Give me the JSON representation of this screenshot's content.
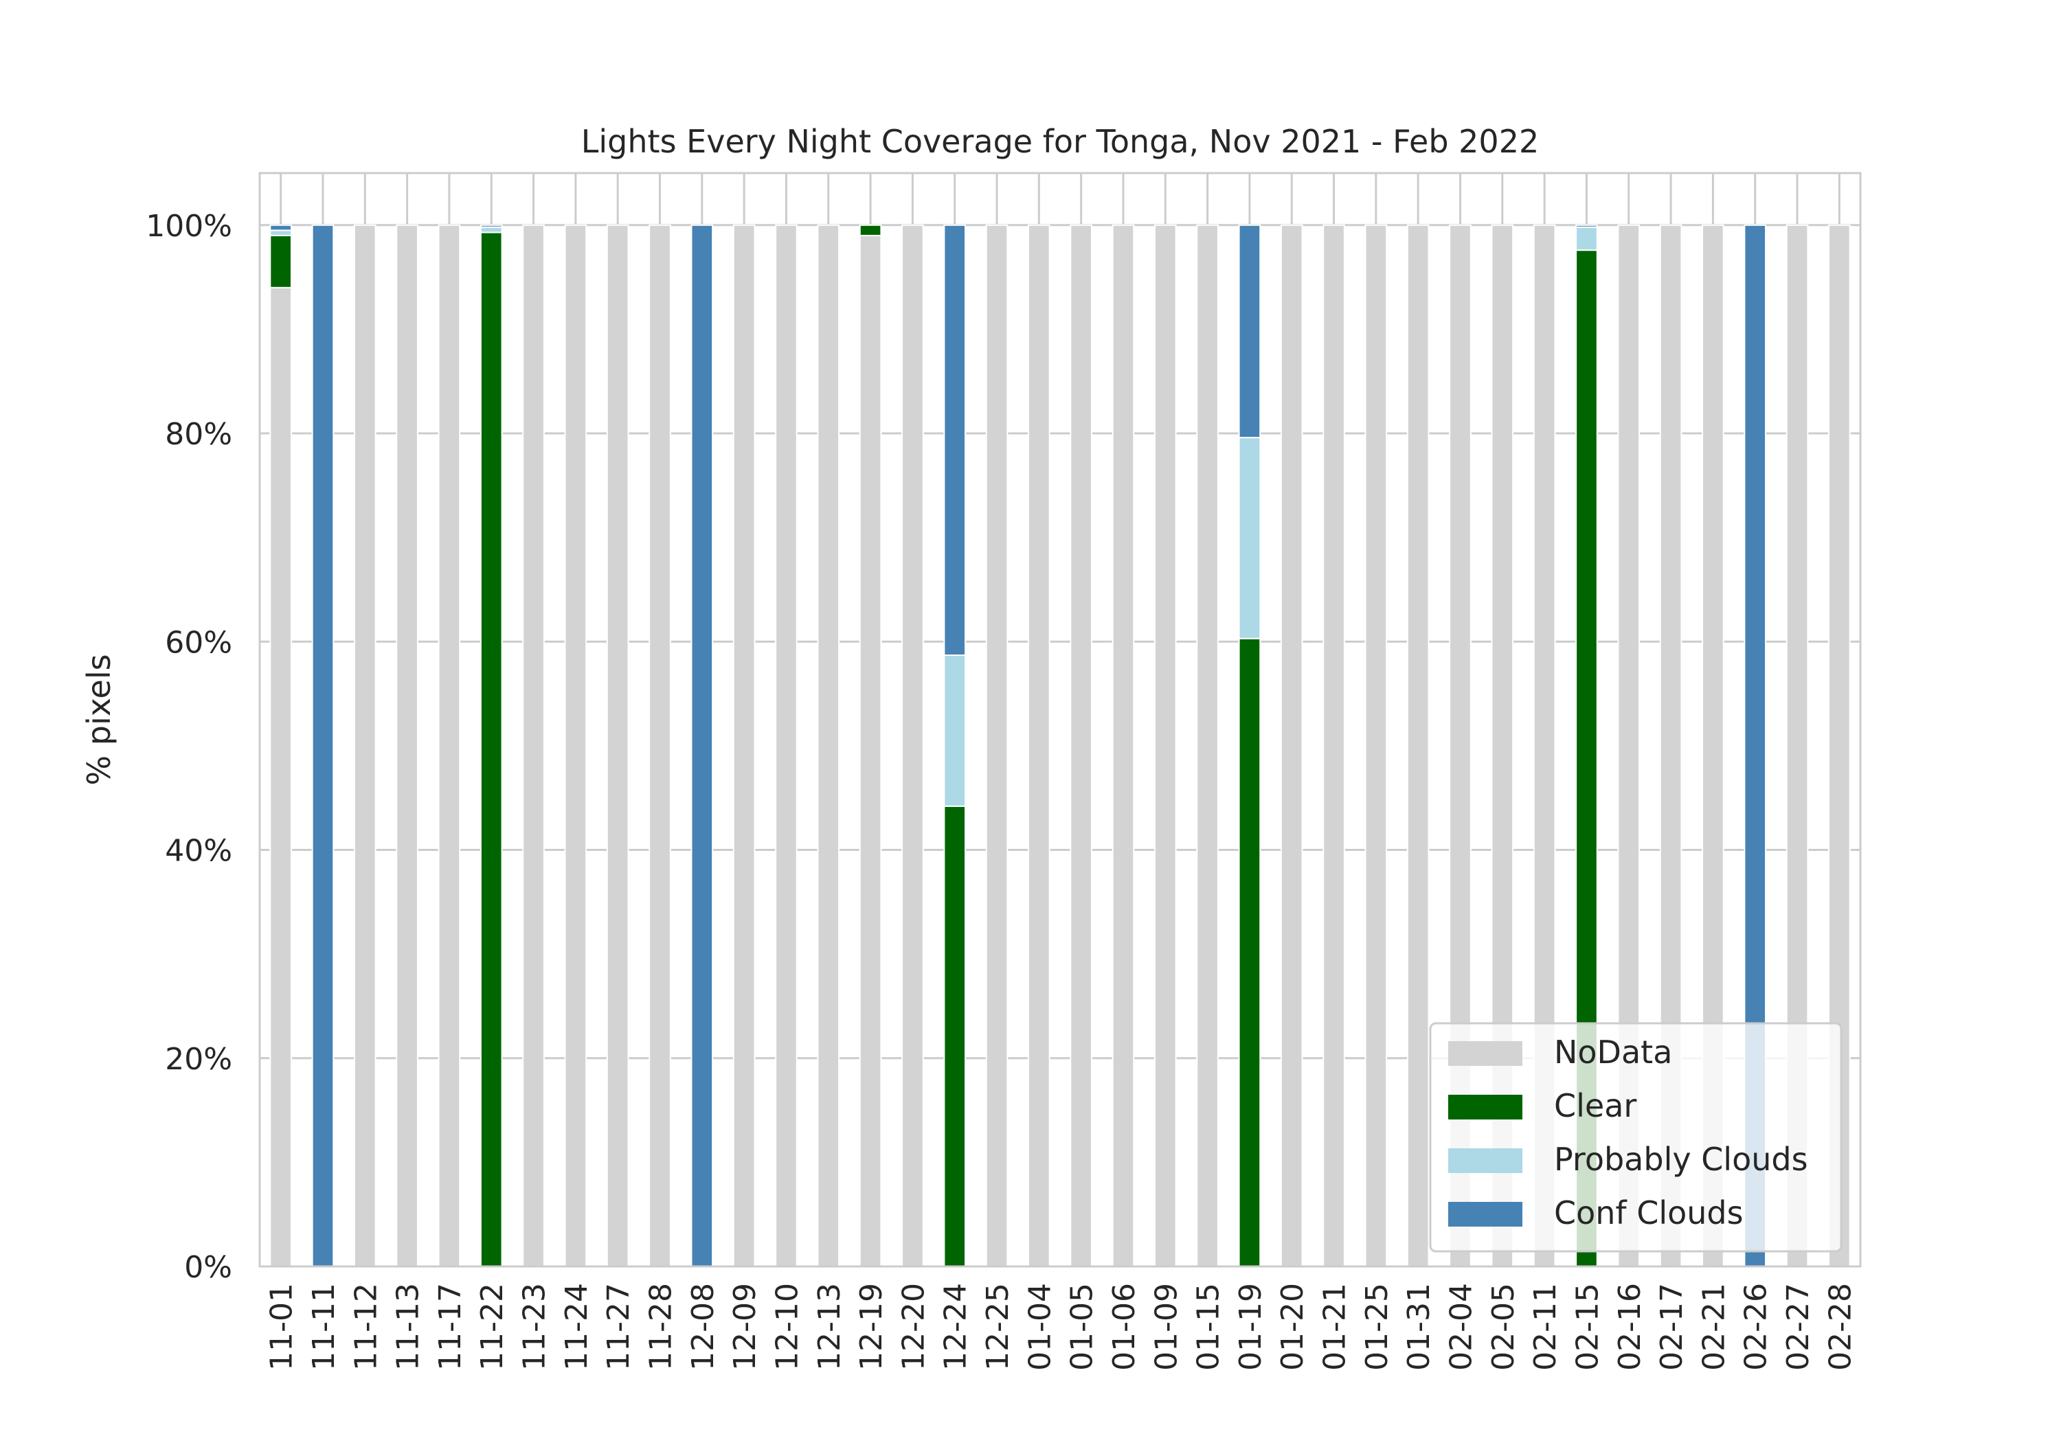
{
  "chart_data": {
    "type": "bar",
    "stacked": true,
    "title": "Lights Every Night Coverage for Tonga, Nov 2021 - Feb 2022",
    "xlabel": "",
    "ylabel": "% pixels",
    "ylim": [
      0,
      105
    ],
    "yticks": [
      0,
      20,
      40,
      60,
      80,
      100
    ],
    "ytick_labels": [
      "0%",
      "20%",
      "40%",
      "60%",
      "80%",
      "100%"
    ],
    "grid": "horizontal",
    "legend_position": "lower-right",
    "categories": [
      "11-01",
      "11-11",
      "11-12",
      "11-13",
      "11-17",
      "11-22",
      "11-23",
      "11-24",
      "11-27",
      "11-28",
      "12-08",
      "12-09",
      "12-10",
      "12-13",
      "12-19",
      "12-20",
      "12-24",
      "12-25",
      "01-04",
      "01-05",
      "01-06",
      "01-09",
      "01-15",
      "01-19",
      "01-20",
      "01-21",
      "01-25",
      "01-31",
      "02-04",
      "02-05",
      "02-11",
      "02-15",
      "02-16",
      "02-17",
      "02-21",
      "02-26",
      "02-27",
      "02-28"
    ],
    "series": [
      {
        "name": "NoData",
        "color": "#d3d3d3",
        "values": [
          94,
          0,
          100,
          100,
          100,
          0,
          100,
          100,
          100,
          100,
          0,
          100,
          100,
          100,
          99,
          100,
          0,
          100,
          100,
          100,
          100,
          100,
          100,
          0,
          100,
          100,
          100,
          100,
          100,
          100,
          100,
          0,
          100,
          100,
          100,
          0,
          100,
          100
        ]
      },
      {
        "name": "Clear",
        "color": "#006400",
        "values": [
          5,
          0,
          0,
          0,
          0,
          99.3,
          0,
          0,
          0,
          0,
          0,
          0,
          0,
          0,
          1,
          0,
          44.2,
          0,
          0,
          0,
          0,
          0,
          0,
          60.3,
          0,
          0,
          0,
          0,
          0,
          0,
          0,
          97.6,
          0,
          0,
          0,
          0,
          0,
          0
        ]
      },
      {
        "name": "Probably Clouds",
        "color": "#add8e6",
        "values": [
          0.5,
          0,
          0,
          0,
          0,
          0.5,
          0,
          0,
          0,
          0,
          0,
          0,
          0,
          0,
          0,
          0,
          14.5,
          0,
          0,
          0,
          0,
          0,
          0,
          19.3,
          0,
          0,
          0,
          0,
          0,
          0,
          0,
          2.2,
          0,
          0,
          0,
          0,
          0,
          0
        ]
      },
      {
        "name": "Conf Clouds",
        "color": "#4682b4",
        "values": [
          0.5,
          100,
          0,
          0,
          0,
          0.2,
          0,
          0,
          0,
          0,
          100,
          0,
          0,
          0,
          0,
          0,
          41.3,
          0,
          0,
          0,
          0,
          0,
          0,
          20.4,
          0,
          0,
          0,
          0,
          0,
          0,
          0,
          0.2,
          0,
          0,
          0,
          100,
          0,
          0
        ]
      }
    ]
  }
}
